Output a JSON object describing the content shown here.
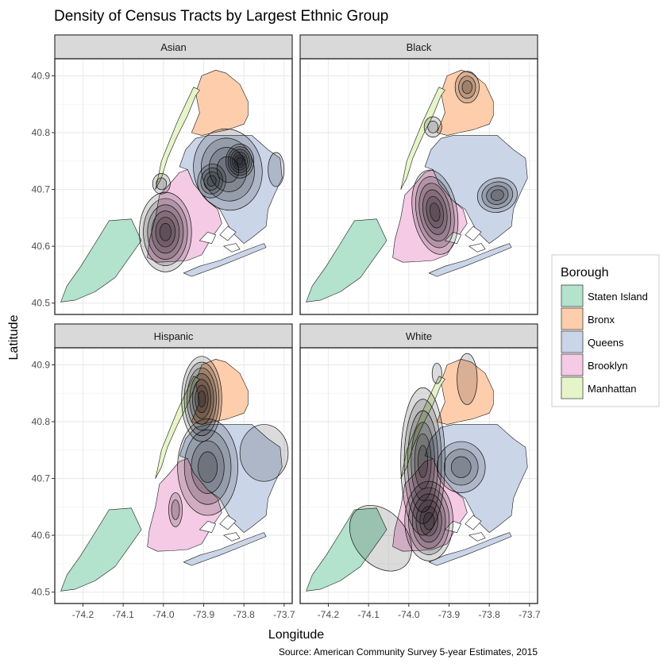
{
  "title": "Density of Census Tracts by Largest Ethnic Group",
  "caption": "Source: American Community Survey 5-year Estimates, 2015",
  "xlabel": "Longitude",
  "ylabel": "Latitude",
  "facets": [
    {
      "label": "Asian"
    },
    {
      "label": "Black"
    },
    {
      "label": "Hispanic"
    },
    {
      "label": "White"
    }
  ],
  "axes": {
    "x_ticks": [
      "-74.2",
      "-74.1",
      "-74.0",
      "-73.9",
      "-73.8",
      "-73.7"
    ],
    "y_ticks": [
      "40.9",
      "40.8",
      "40.7",
      "40.6",
      "40.5"
    ]
  },
  "legend": {
    "title": "Borough",
    "items": [
      {
        "label": "Staten Island",
        "color": "#B3E2CD"
      },
      {
        "label": "Bronx",
        "color": "#FDCDAC"
      },
      {
        "label": "Queens",
        "color": "#CBD5E8"
      },
      {
        "label": "Brooklyn",
        "color": "#F4CAE4"
      },
      {
        "label": "Manhattan",
        "color": "#E6F5C9"
      }
    ]
  },
  "chart_data": {
    "type": "map",
    "x_range": [
      -74.27,
      -73.68
    ],
    "y_range": [
      40.48,
      40.93
    ],
    "grid": true,
    "legend_position": "right",
    "borough_colors": {
      "Staten Island": "#B3E2CD",
      "Bronx": "#FDCDAC",
      "Queens": "#CBD5E8",
      "Brooklyn": "#F4CAE4",
      "Manhattan": "#E6F5C9"
    },
    "density_centers": {
      "Asian": [
        [
          -73.81,
          40.75
        ],
        [
          -73.86,
          40.72
        ],
        [
          -74.0,
          40.62
        ],
        [
          -74.0,
          40.71
        ]
      ],
      "Black": [
        [
          -73.94,
          40.66
        ],
        [
          -73.77,
          40.69
        ],
        [
          -73.85,
          40.88
        ],
        [
          -73.94,
          40.81
        ]
      ],
      "Hispanic": [
        [
          -73.9,
          40.84
        ],
        [
          -73.88,
          40.72
        ],
        [
          -73.97,
          40.65
        ]
      ],
      "White": [
        [
          -73.95,
          40.62
        ],
        [
          -73.96,
          40.75
        ],
        [
          -73.86,
          40.72
        ],
        [
          -74.07,
          40.6
        ],
        [
          -73.85,
          40.87
        ]
      ]
    }
  }
}
